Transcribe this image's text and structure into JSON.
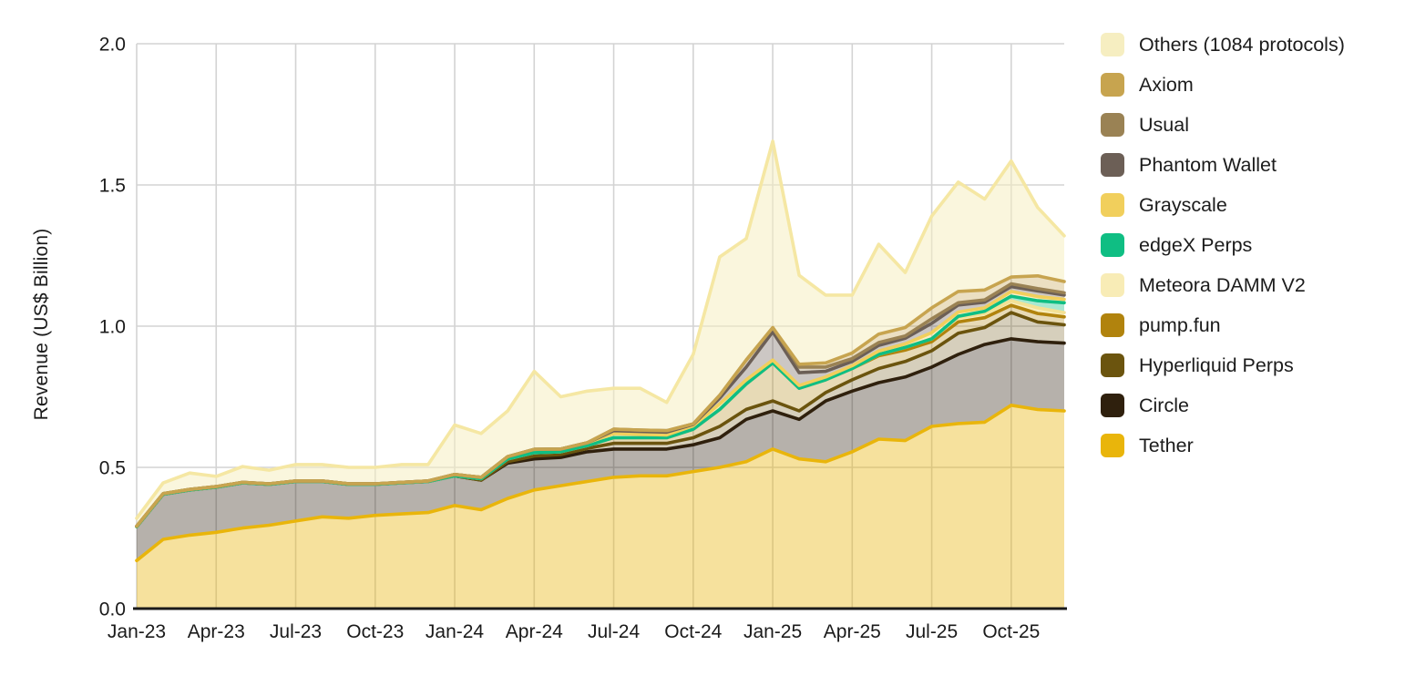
{
  "y_axis": {
    "title": "Revenue (US$ Billion)",
    "tick_labels": [
      "0.0",
      "0.5",
      "1.0",
      "1.5",
      "2.0"
    ],
    "tick_values": [
      0,
      0.5,
      1.0,
      1.5,
      2.0
    ]
  },
  "x_axis": {
    "tick_labels": [
      "Jan-23",
      "Apr-23",
      "Jul-23",
      "Oct-23",
      "Jan-24",
      "Apr-24",
      "Jul-24",
      "Oct-24",
      "Jan-25",
      "Apr-25",
      "Jul-25",
      "Oct-25"
    ],
    "tick_month_indices": [
      0,
      3,
      6,
      9,
      12,
      15,
      18,
      21,
      24,
      27,
      30,
      33
    ]
  },
  "theme": {
    "background": "#ffffff",
    "grid_color": "#d3d3d3",
    "axis_line_color": "#1a1a1a",
    "text_color": "#1a1a1a"
  },
  "legend": [
    {
      "label": "Others (1084 protocols)",
      "color": "#F6EEC1",
      "slug": "others"
    },
    {
      "label": "Axiom",
      "color": "#C7A44F",
      "slug": "axiom"
    },
    {
      "label": "Usual",
      "color": "#9A8254",
      "slug": "usual"
    },
    {
      "label": "Phantom Wallet",
      "color": "#6C5F56",
      "slug": "phantom-wallet"
    },
    {
      "label": "Grayscale",
      "color": "#F1CF5C",
      "slug": "grayscale"
    },
    {
      "label": "edgeX Perps",
      "color": "#0FBE83",
      "slug": "edgex-perps"
    },
    {
      "label": "Meteora DAMM V2",
      "color": "#F8ECB6",
      "slug": "meteora-damm-v2"
    },
    {
      "label": "pump.fun",
      "color": "#B1830D",
      "slug": "pump-fun"
    },
    {
      "label": "Hyperliquid Perps",
      "color": "#6B540E",
      "slug": "hyperliquid-perps"
    },
    {
      "label": "Circle",
      "color": "#2F200D",
      "slug": "circle"
    },
    {
      "label": "Tether",
      "color": "#E9B50B",
      "slug": "tether"
    }
  ],
  "chart_data": {
    "type": "area",
    "stacked": true,
    "title": "",
    "xlabel": "",
    "ylabel": "Revenue (US$ Billion)",
    "unit": "US$ Billion",
    "ylim": [
      0,
      2.0
    ],
    "grid": true,
    "legend_position": "right",
    "months": [
      "Jan-23",
      "Feb-23",
      "Mar-23",
      "Apr-23",
      "May-23",
      "Jun-23",
      "Jul-23",
      "Aug-23",
      "Sep-23",
      "Oct-23",
      "Nov-23",
      "Dec-23",
      "Jan-24",
      "Feb-24",
      "Mar-24",
      "Apr-24",
      "May-24",
      "Jun-24",
      "Jul-24",
      "Aug-24",
      "Sep-24",
      "Oct-24",
      "Nov-24",
      "Dec-24",
      "Jan-25",
      "Feb-25",
      "Mar-25",
      "Apr-25",
      "May-25",
      "Jun-25",
      "Jul-25",
      "Aug-25",
      "Sep-25",
      "Oct-25",
      "Nov-25",
      "Dec-25"
    ],
    "series": [
      {
        "name": "Tether",
        "color": "#E9B50B",
        "fill_opacity": 0.4,
        "values": [
          0.17,
          0.245,
          0.26,
          0.27,
          0.285,
          0.295,
          0.31,
          0.325,
          0.32,
          0.33,
          0.335,
          0.34,
          0.365,
          0.35,
          0.39,
          0.42,
          0.435,
          0.45,
          0.465,
          0.47,
          0.47,
          0.485,
          0.5,
          0.52,
          0.565,
          0.53,
          0.52,
          0.555,
          0.6,
          0.595,
          0.645,
          0.655,
          0.66,
          0.72,
          0.705,
          0.7
        ]
      },
      {
        "name": "Circle",
        "color": "#2F200D",
        "fill_opacity": 0.35,
        "values": [
          0.12,
          0.16,
          0.16,
          0.16,
          0.16,
          0.145,
          0.14,
          0.125,
          0.12,
          0.11,
          0.11,
          0.11,
          0.105,
          0.105,
          0.125,
          0.11,
          0.1,
          0.105,
          0.1,
          0.095,
          0.095,
          0.095,
          0.105,
          0.15,
          0.135,
          0.14,
          0.215,
          0.215,
          0.2,
          0.225,
          0.21,
          0.245,
          0.275,
          0.235,
          0.24,
          0.24
        ]
      },
      {
        "name": "Hyperliquid Perps",
        "color": "#6B540E",
        "fill_opacity": 0.28,
        "values": [
          0,
          0,
          0,
          0,
          0,
          0,
          0,
          0,
          0,
          0,
          0,
          0,
          0,
          0,
          0.005,
          0.01,
          0.01,
          0.012,
          0.02,
          0.02,
          0.02,
          0.025,
          0.04,
          0.035,
          0.035,
          0.03,
          0.03,
          0.04,
          0.05,
          0.055,
          0.058,
          0.075,
          0.06,
          0.093,
          0.07,
          0.065
        ]
      },
      {
        "name": "pump.fun",
        "color": "#B1830D",
        "fill_opacity": 0.3,
        "values": [
          0,
          0,
          0,
          0,
          0,
          0,
          0,
          0,
          0,
          0,
          0,
          0,
          0,
          0.005,
          0.01,
          0.012,
          0.01,
          0.01,
          0.02,
          0.02,
          0.02,
          0.03,
          0.06,
          0.09,
          0.135,
          0.08,
          0.045,
          0.04,
          0.045,
          0.04,
          0.032,
          0.04,
          0.035,
          0.026,
          0.03,
          0.028
        ]
      },
      {
        "name": "Meteora DAMM V2",
        "color": "#F8ECB6",
        "stroke_color": "#F3E195",
        "fill_opacity": 0.9,
        "values": [
          0,
          0,
          0,
          0,
          0,
          0,
          0,
          0,
          0,
          0,
          0,
          0,
          0,
          0,
          0,
          0,
          0,
          0,
          0,
          0,
          0,
          0,
          0,
          0,
          0,
          0,
          0,
          0,
          0.005,
          0.01,
          0.01,
          0.015,
          0.015,
          0.016,
          0.02,
          0.015
        ]
      },
      {
        "name": "edgeX Perps",
        "color": "#0FBE83",
        "fill_opacity": 0.36,
        "values": [
          0,
          0,
          0,
          0,
          0,
          0,
          0,
          0,
          0,
          0,
          0,
          0,
          0,
          0,
          0,
          0,
          0,
          0,
          0,
          0,
          0,
          0,
          0,
          0,
          0,
          0,
          0,
          0,
          0,
          0,
          0,
          0.005,
          0.008,
          0.016,
          0.025,
          0.035
        ]
      },
      {
        "name": "Grayscale",
        "color": "#F1CF5C",
        "fill_opacity": 0.35,
        "values": [
          0.002,
          0.002,
          0.002,
          0.002,
          0.002,
          0.002,
          0.002,
          0.002,
          0.002,
          0.002,
          0.002,
          0.002,
          0.005,
          0.005,
          0.008,
          0.012,
          0.01,
          0.01,
          0.015,
          0.012,
          0.01,
          0.012,
          0.02,
          0.015,
          0.01,
          0.01,
          0.01,
          0.01,
          0.012,
          0.012,
          0.022,
          0.015,
          0.012,
          0.017,
          0.015,
          0.012
        ]
      },
      {
        "name": "Phantom Wallet",
        "color": "#6C5F56",
        "fill_opacity": 0.35,
        "values": [
          0,
          0,
          0,
          0,
          0,
          0,
          0,
          0,
          0,
          0,
          0,
          0,
          0,
          0,
          0,
          0,
          0,
          0,
          0.01,
          0.01,
          0.01,
          0.005,
          0.02,
          0.045,
          0.1,
          0.045,
          0.02,
          0.015,
          0.02,
          0.02,
          0.033,
          0.025,
          0.02,
          0.017,
          0.02,
          0.015
        ]
      },
      {
        "name": "Usual",
        "color": "#9A8254",
        "fill_opacity": 0.35,
        "values": [
          0,
          0,
          0,
          0,
          0,
          0,
          0,
          0,
          0,
          0,
          0,
          0,
          0,
          0,
          0,
          0,
          0,
          0,
          0.005,
          0.005,
          0.005,
          0.002,
          0.01,
          0.025,
          0.015,
          0.02,
          0.015,
          0.01,
          0.01,
          0.008,
          0.016,
          0.008,
          0.008,
          0.01,
          0.008,
          0.008
        ]
      },
      {
        "name": "Axiom",
        "color": "#C7A44F",
        "fill_opacity": 0.35,
        "values": [
          0,
          0,
          0,
          0,
          0,
          0,
          0,
          0,
          0,
          0,
          0,
          0,
          0,
          0,
          0,
          0,
          0,
          0,
          0,
          0,
          0,
          0,
          0,
          0,
          0,
          0.01,
          0.015,
          0.02,
          0.03,
          0.03,
          0.039,
          0.04,
          0.035,
          0.024,
          0.045,
          0.04
        ]
      },
      {
        "name": "Others (1084 protocols)",
        "color": "#F6EEC1",
        "stroke_color": "#F5E7A3",
        "fill_opacity": 0.55,
        "values": [
          0.028,
          0.038,
          0.058,
          0.036,
          0.056,
          0.048,
          0.058,
          0.058,
          0.058,
          0.058,
          0.063,
          0.058,
          0.175,
          0.155,
          0.162,
          0.276,
          0.185,
          0.183,
          0.145,
          0.148,
          0.1,
          0.246,
          0.49,
          0.43,
          0.66,
          0.315,
          0.24,
          0.205,
          0.318,
          0.195,
          0.325,
          0.387,
          0.322,
          0.411,
          0.242,
          0.162
        ]
      }
    ]
  }
}
